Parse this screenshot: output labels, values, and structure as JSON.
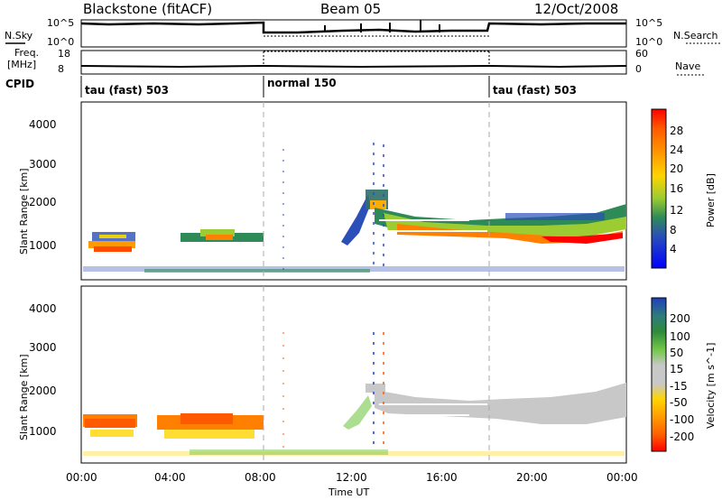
{
  "header": {
    "radar_title": "Blackstone (fitACF)",
    "beam_title": "Beam 05",
    "date_title": "12/Oct/2008"
  },
  "strip_panels": {
    "nsky_label": "N.Sky",
    "nsky_ticks": [
      "10^5",
      "10^0"
    ],
    "nsearch_label": "N.Search",
    "nsearch_ticks": [
      "10^5",
      "10^0"
    ],
    "freq_label_1": "Freq.",
    "freq_label_2": "[MHz]",
    "freq_ticks": [
      "18",
      "8"
    ],
    "nave_label": "Nave",
    "nave_ticks": [
      "60",
      "0"
    ],
    "cpid_label": "CPID",
    "cpid_segments": [
      {
        "label": "tau (fast) 503",
        "start_hour": 0
      },
      {
        "label": "normal 150",
        "start_hour": 8
      },
      {
        "label": "tau (fast) 503",
        "start_hour": 18
      }
    ]
  },
  "chart_data": [
    {
      "type": "heatmap",
      "name": "power",
      "ylabel": "Slant Range [km]",
      "yticks": [
        "1000",
        "2000",
        "3000",
        "4000"
      ],
      "colorbar_label": "Power [dB]",
      "colorbar_ticks": [
        "4",
        "8",
        "12",
        "16",
        "20",
        "24",
        "28"
      ],
      "colorbar_colors": [
        "#0000ff",
        "#2a4fb8",
        "#2f6f6a",
        "#2e8b57",
        "#58a83a",
        "#9ccc31",
        "#e8d10e",
        "#ffae00",
        "#ff8000",
        "#ff4a00",
        "#ff0000"
      ],
      "xlim": [
        0,
        24
      ],
      "ylim": [
        200,
        4600
      ],
      "regions": [
        {
          "t0": 0.5,
          "t1": 3.0,
          "r0": 850,
          "r1": 1400,
          "color": "mixed_power"
        },
        {
          "t0": 4.3,
          "t1": 7.8,
          "r0": 950,
          "r1": 1350,
          "color": "mixed_power"
        },
        {
          "t0": 10.6,
          "t1": 13.0,
          "r0": 900,
          "r1": 2200,
          "color": "mixed_power"
        },
        {
          "t0": 12.9,
          "t1": 24.0,
          "r0": 900,
          "r1": 2200,
          "color": "mixed_power"
        }
      ]
    },
    {
      "type": "heatmap",
      "name": "velocity",
      "xlabel": "Time UT",
      "ylabel": "Slant Range [km]",
      "xticks": [
        "00:00",
        "04:00",
        "08:00",
        "12:00",
        "16:00",
        "20:00",
        "00:00"
      ],
      "yticks": [
        "1000",
        "2000",
        "3000",
        "4000"
      ],
      "colorbar_label": "Velocity [m s^-1]",
      "colorbar_ticks": [
        "200",
        "100",
        "50",
        "15",
        "-15",
        "-50",
        "-100",
        "-200"
      ],
      "colorbar_colors": [
        "#1f3fbf",
        "#2e7d7a",
        "#2e8b3a",
        "#74c84a",
        "#c8c8c8",
        "#ffd400",
        "#ff9a00",
        "#ff5a00",
        "#ff0000"
      ],
      "xlim": [
        0,
        24
      ],
      "ylim": [
        200,
        4600
      ]
    }
  ]
}
